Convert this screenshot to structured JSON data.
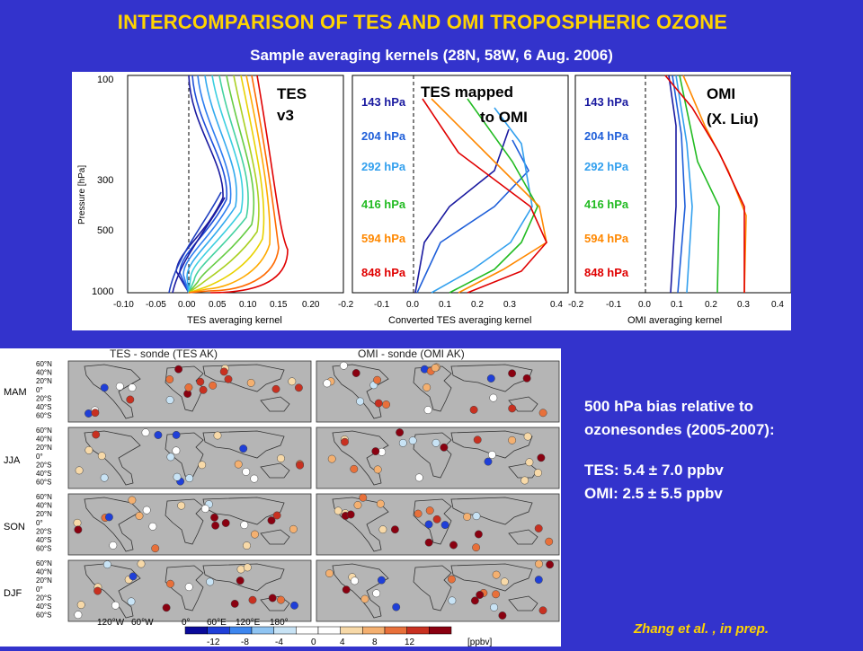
{
  "slide": {
    "title": "INTERCOMPARISON OF TES AND OMI TROPOSPHERIC OZONE",
    "subtitle": "Sample averaging kernels (28N, 58W, 6 Aug. 2006)",
    "bias_heading_line1": "500 hPa bias relative to",
    "bias_heading_line2": "ozonesondes (2005-2007):",
    "tes_bias": "TES: 5.4 ±  7.0 ppbv",
    "omi_bias": "OMI: 2.5 ±  5.5 ppbv",
    "credit": "Zhang et al. , in prep."
  },
  "kernels": {
    "panel1_label_line1": "TES",
    "panel1_label_line2": "v3",
    "panel2_label_line1": "TES mapped",
    "panel2_label_line2": "to OMI",
    "panel3_label_line1": "OMI",
    "panel3_label_line2": "(X. Liu)",
    "ylabel": "Pressure [hPa]",
    "yticks": [
      "100",
      "300",
      "500",
      "1000"
    ],
    "panel1_xlabel": "TES averaging kernel",
    "panel2_xlabel": "Converted TES averaging kernel",
    "panel3_xlabel": "OMI averaging kernel",
    "panel1_xticks": [
      "-0.10",
      "-0.05",
      "0.00",
      "0.05",
      "0.10",
      "0.15",
      "0.20"
    ],
    "panel2_xticks": [
      "-0.2",
      "-0.1",
      "0.0",
      "0.1",
      "0.2",
      "0.3",
      "0.4"
    ],
    "panel3_xticks": [
      "-0.2",
      "-0.1",
      "0.0",
      "0.1",
      "0.2",
      "0.3",
      "0.4"
    ],
    "levels": [
      {
        "label": "143 hPa",
        "color": "#1a1aa0"
      },
      {
        "label": "204 hPa",
        "color": "#1f5fd9"
      },
      {
        "label": "292 hPa",
        "color": "#33a0ee"
      },
      {
        "label": "416 hPa",
        "color": "#22bb22"
      },
      {
        "label": "594 hPa",
        "color": "#ff8800"
      },
      {
        "label": "848 hPa",
        "color": "#e00000"
      }
    ]
  },
  "maps": {
    "left_title": "TES - sonde (TES AK)",
    "right_title": "OMI - sonde (OMI AK)",
    "seasons": [
      "MAM",
      "JJA",
      "SON",
      "DJF"
    ],
    "lat_labels": [
      "60°N",
      "40°N",
      "20°N",
      "0°",
      "20°S",
      "40°S",
      "60°S"
    ],
    "lon_labels": [
      "120°W",
      "60°W",
      "0°",
      "60°E",
      "120°E",
      "180°"
    ],
    "colorbar_ticks": [
      "-12",
      "-8",
      "-4",
      "0",
      "4",
      "8",
      "12"
    ],
    "colorbar_unit": "[ppbv]",
    "colorbar_colors": [
      "#0a0a9a",
      "#1f3fd8",
      "#3d86ee",
      "#8fc4f2",
      "#c8e3f5",
      "#ffffff",
      "#ffffff",
      "#f7d9a8",
      "#f4b070",
      "#e8703a",
      "#c83020",
      "#8a0010"
    ]
  }
}
